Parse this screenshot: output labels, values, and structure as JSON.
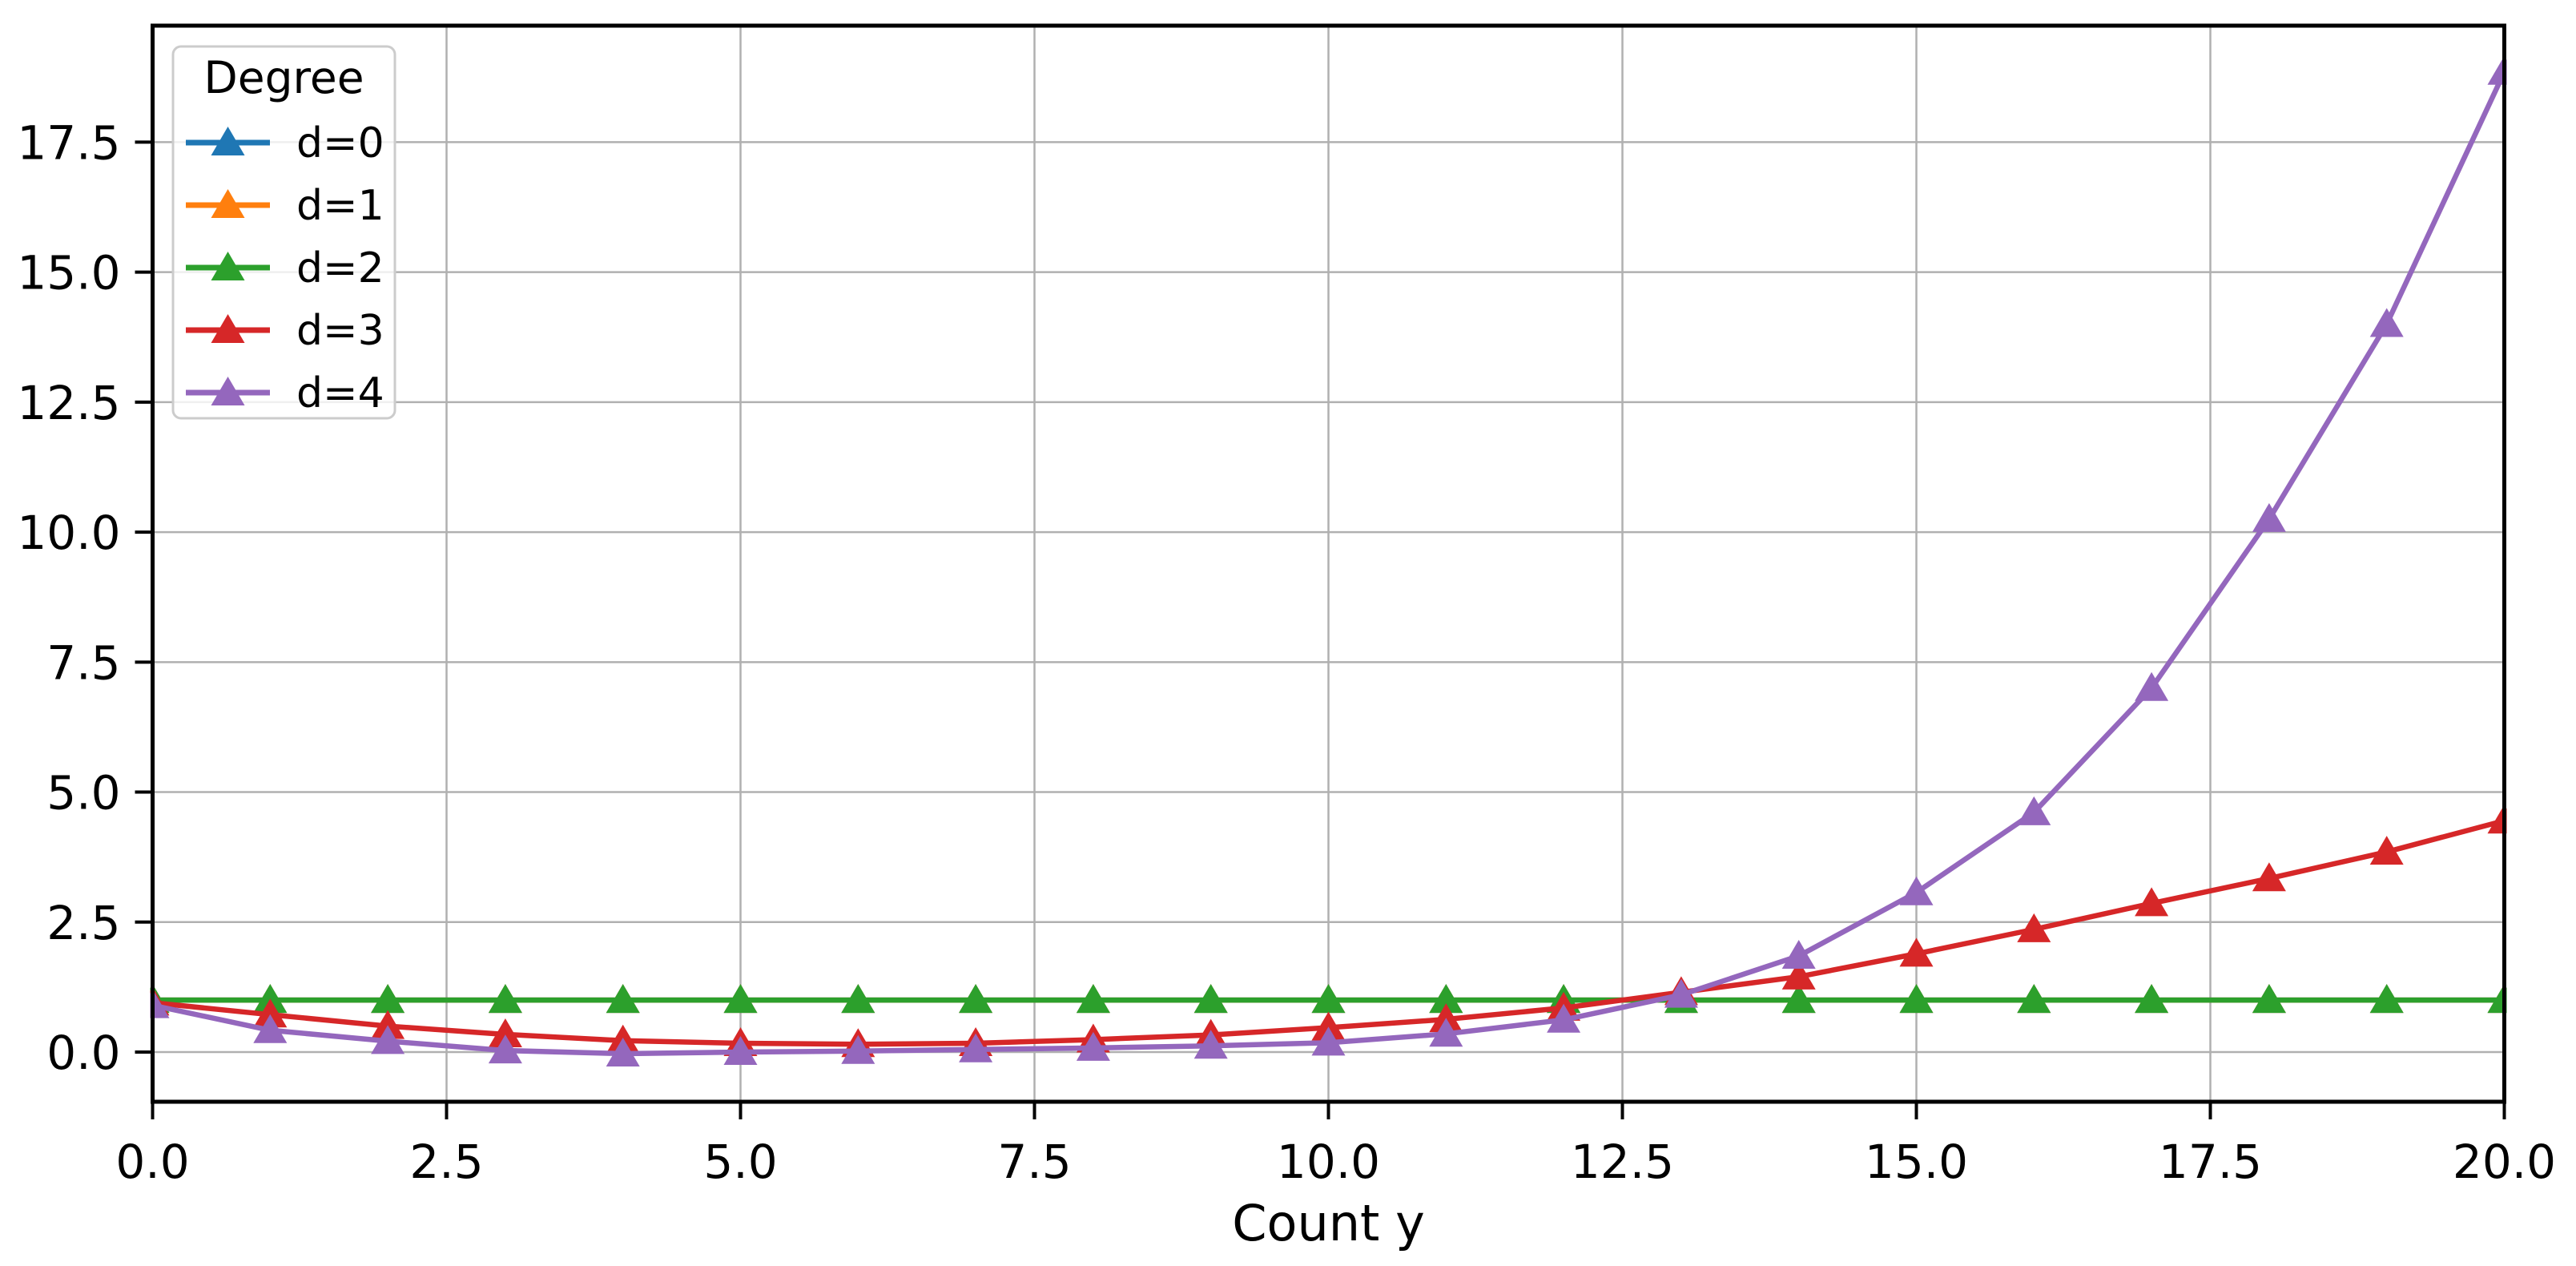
{
  "chart_data": {
    "type": "line",
    "title": "",
    "xlabel": "Count y",
    "ylabel": "",
    "grid": true,
    "marker": "triangle_up",
    "legend": {
      "title": "Degree",
      "position": "upper left",
      "entries": [
        "d=0",
        "d=1",
        "d=2",
        "d=3",
        "d=4"
      ]
    },
    "xlim": [
      0,
      20
    ],
    "ylim": [
      -0.955,
      19.74
    ],
    "x_tick_values": [
      0,
      2.5,
      5,
      7.5,
      10,
      12.5,
      15,
      17.5,
      20
    ],
    "x_tick_labels": [
      "0.0",
      "2.5",
      "5.0",
      "7.5",
      "10.0",
      "12.5",
      "15.0",
      "17.5",
      "20.0"
    ],
    "y_tick_values": [
      0,
      2.5,
      5,
      7.5,
      10,
      12.5,
      15,
      17.5
    ],
    "y_tick_labels": [
      "0.0",
      "2.5",
      "5.0",
      "7.5",
      "10.0",
      "12.5",
      "15.0",
      "17.5"
    ],
    "x": [
      0,
      1,
      2,
      3,
      4,
      5,
      6,
      7,
      8,
      9,
      10,
      11,
      12,
      13,
      14,
      15,
      16,
      17,
      18,
      19,
      20
    ],
    "series": [
      {
        "name": "d=0",
        "color": "#1f77b4",
        "values": [
          1.0,
          1.0,
          1.0,
          1.0,
          1.0,
          1.0,
          1.0,
          1.0,
          1.0,
          1.0,
          1.0,
          1.0,
          1.0,
          1.0,
          1.0,
          1.0,
          1.0,
          1.0,
          1.0,
          1.0,
          1.0
        ]
      },
      {
        "name": "d=1",
        "color": "#ff7f0e",
        "values": [
          1.0,
          1.0,
          1.0,
          1.0,
          1.0,
          1.0,
          1.0,
          1.0,
          1.0,
          1.0,
          1.0,
          1.0,
          1.0,
          1.0,
          1.0,
          1.0,
          1.0,
          1.0,
          1.0,
          1.0,
          1.0
        ]
      },
      {
        "name": "d=2",
        "color": "#2ca02c",
        "values": [
          1.0,
          1.0,
          1.0,
          1.0,
          1.0,
          1.0,
          1.0,
          1.0,
          1.0,
          1.0,
          1.0,
          1.0,
          1.0,
          1.0,
          1.0,
          1.0,
          1.0,
          1.0,
          1.0,
          1.0,
          1.0
        ]
      },
      {
        "name": "d=3",
        "color": "#d62728",
        "values": [
          0.95,
          0.72,
          0.5,
          0.34,
          0.22,
          0.17,
          0.15,
          0.17,
          0.24,
          0.33,
          0.47,
          0.63,
          0.85,
          1.15,
          1.45,
          1.89,
          2.36,
          2.86,
          3.34,
          3.85,
          4.45
        ]
      },
      {
        "name": "d=4",
        "color": "#9467bd",
        "values": [
          0.9,
          0.42,
          0.21,
          0.03,
          -0.03,
          0.0,
          0.02,
          0.05,
          0.08,
          0.12,
          0.18,
          0.35,
          0.62,
          1.1,
          1.85,
          3.07,
          4.61,
          7.0,
          10.25,
          14.0,
          18.85
        ]
      }
    ],
    "colors": {
      "background": "#ffffff",
      "grid": "#b0b0b0",
      "spine": "#000000",
      "text": "#000000",
      "legend_border": "#cccccc",
      "legend_background": "rgba(255,255,255,0.8)"
    }
  }
}
